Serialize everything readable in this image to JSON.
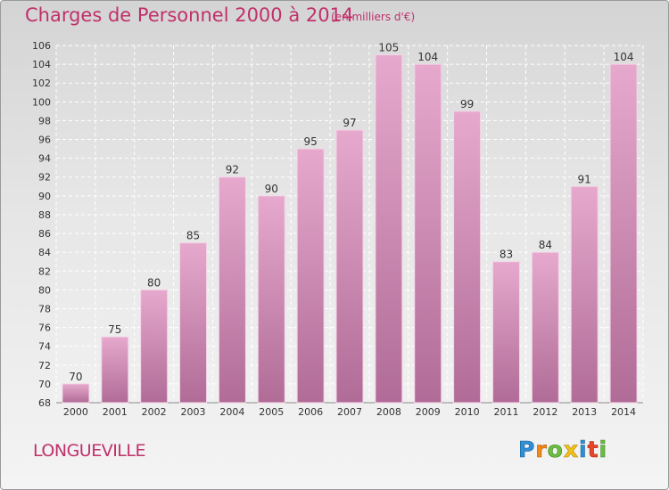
{
  "header": {
    "title": "Charges de Personnel 2000 à 2014",
    "subtitle": "(en milliers d'€)"
  },
  "footer": {
    "place": "LONGUEVILLE",
    "logo_text": "Proxiti"
  },
  "colors": {
    "title": "#c0306a",
    "bar_top": "#e6a9cd",
    "bar_bottom": "#b06c97",
    "bar_stroke": "#f3d5e6",
    "grid": "#ffffff",
    "axis_text": "#333333"
  },
  "chart_data": {
    "type": "bar",
    "title": "Charges de Personnel 2000 à 2014",
    "categories": [
      "2000",
      "2001",
      "2002",
      "2003",
      "2004",
      "2005",
      "2006",
      "2007",
      "2008",
      "2009",
      "2010",
      "2011",
      "2012",
      "2013",
      "2014"
    ],
    "values": [
      70,
      75,
      80,
      85,
      92,
      90,
      95,
      97,
      105,
      104,
      99,
      83,
      84,
      91,
      104
    ],
    "ylim": [
      68,
      106
    ],
    "yticks": [
      68,
      70,
      72,
      74,
      76,
      78,
      80,
      82,
      84,
      86,
      88,
      90,
      92,
      94,
      96,
      98,
      100,
      102,
      104,
      106
    ],
    "grid": true,
    "data_labels": true,
    "xlabel": "",
    "ylabel": ""
  }
}
